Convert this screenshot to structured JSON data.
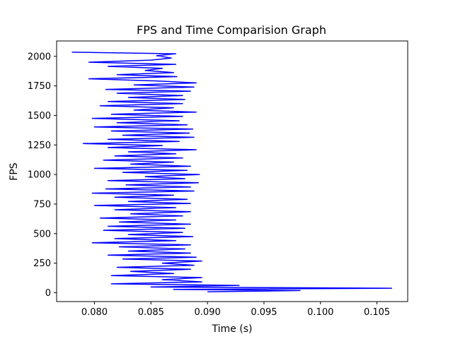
{
  "chart_data": {
    "type": "line",
    "title": "FPS and Time Comparision Graph",
    "xlabel": "Time (s)",
    "ylabel": "FPS",
    "xlim": [
      0.0766,
      0.0773
    ],
    "ylim": [
      -75,
      2130
    ],
    "xticks": [
      0.08,
      0.085,
      0.09,
      0.095,
      0.1,
      0.105
    ],
    "xtick_labels": [
      "0.080",
      "0.085",
      "0.090",
      "0.095",
      "0.100",
      "0.105"
    ],
    "yticks": [
      0,
      250,
      500,
      750,
      1000,
      1250,
      1500,
      1750,
      2000
    ],
    "ytick_labels": [
      "0",
      "250",
      "500",
      "750",
      "1000",
      "1250",
      "1500",
      "1750",
      "2000"
    ],
    "grid": false,
    "series": [
      {
        "color": "#0000ff",
        "points": [
          [
            0.078,
            2035
          ],
          [
            0.0872,
            2022
          ],
          [
            0.0855,
            2005
          ],
          [
            0.0868,
            1985
          ],
          [
            0.085,
            1968
          ],
          [
            0.0795,
            1950
          ],
          [
            0.0872,
            1932
          ],
          [
            0.0812,
            1915
          ],
          [
            0.086,
            1898
          ],
          [
            0.0845,
            1880
          ],
          [
            0.087,
            1862
          ],
          [
            0.082,
            1845
          ],
          [
            0.0873,
            1828
          ],
          [
            0.0795,
            1810
          ],
          [
            0.0855,
            1792
          ],
          [
            0.089,
            1775
          ],
          [
            0.0835,
            1758
          ],
          [
            0.0888,
            1740
          ],
          [
            0.081,
            1720
          ],
          [
            0.0885,
            1705
          ],
          [
            0.082,
            1688
          ],
          [
            0.0878,
            1668
          ],
          [
            0.083,
            1652
          ],
          [
            0.088,
            1635
          ],
          [
            0.0812,
            1618
          ],
          [
            0.0878,
            1600
          ],
          [
            0.0805,
            1582
          ],
          [
            0.087,
            1565
          ],
          [
            0.0835,
            1545
          ],
          [
            0.089,
            1528
          ],
          [
            0.0815,
            1510
          ],
          [
            0.0878,
            1492
          ],
          [
            0.0798,
            1475
          ],
          [
            0.0875,
            1455
          ],
          [
            0.082,
            1438
          ],
          [
            0.0882,
            1420
          ],
          [
            0.08,
            1402
          ],
          [
            0.0887,
            1385
          ],
          [
            0.0815,
            1368
          ],
          [
            0.0884,
            1350
          ],
          [
            0.0825,
            1332
          ],
          [
            0.0888,
            1315
          ],
          [
            0.0812,
            1298
          ],
          [
            0.0875,
            1280
          ],
          [
            0.079,
            1262
          ],
          [
            0.086,
            1245
          ],
          [
            0.0812,
            1228
          ],
          [
            0.089,
            1210
          ],
          [
            0.083,
            1192
          ],
          [
            0.0872,
            1175
          ],
          [
            0.0818,
            1158
          ],
          [
            0.0878,
            1140
          ],
          [
            0.0808,
            1122
          ],
          [
            0.087,
            1105
          ],
          [
            0.0832,
            1088
          ],
          [
            0.0885,
            1070
          ],
          [
            0.08,
            1052
          ],
          [
            0.0882,
            1035
          ],
          [
            0.0825,
            1018
          ],
          [
            0.0893,
            1000
          ],
          [
            0.0845,
            982
          ],
          [
            0.088,
            965
          ],
          [
            0.0812,
            948
          ],
          [
            0.0892,
            930
          ],
          [
            0.0828,
            912
          ],
          [
            0.0885,
            895
          ],
          [
            0.081,
            878
          ],
          [
            0.0888,
            860
          ],
          [
            0.0798,
            842
          ],
          [
            0.087,
            825
          ],
          [
            0.0818,
            808
          ],
          [
            0.0882,
            790
          ],
          [
            0.083,
            772
          ],
          [
            0.0885,
            755
          ],
          [
            0.08,
            738
          ],
          [
            0.0872,
            720
          ],
          [
            0.0818,
            702
          ],
          [
            0.0885,
            685
          ],
          [
            0.0832,
            668
          ],
          [
            0.0878,
            650
          ],
          [
            0.0805,
            632
          ],
          [
            0.0872,
            615
          ],
          [
            0.0822,
            598
          ],
          [
            0.0885,
            580
          ],
          [
            0.0812,
            562
          ],
          [
            0.088,
            545
          ],
          [
            0.0808,
            528
          ],
          [
            0.0878,
            510
          ],
          [
            0.083,
            492
          ],
          [
            0.0887,
            475
          ],
          [
            0.0818,
            458
          ],
          [
            0.0872,
            440
          ],
          [
            0.0798,
            422
          ],
          [
            0.0885,
            405
          ],
          [
            0.0822,
            388
          ],
          [
            0.088,
            370
          ],
          [
            0.083,
            352
          ],
          [
            0.0885,
            335
          ],
          [
            0.0812,
            318
          ],
          [
            0.089,
            300
          ],
          [
            0.0825,
            285
          ],
          [
            0.0895,
            268
          ],
          [
            0.086,
            250
          ],
          [
            0.0888,
            232
          ],
          [
            0.082,
            215
          ],
          [
            0.0885,
            198
          ],
          [
            0.0832,
            180
          ],
          [
            0.087,
            162
          ],
          [
            0.0815,
            145
          ],
          [
            0.0895,
            128
          ],
          [
            0.086,
            110
          ],
          [
            0.0895,
            92
          ],
          [
            0.0815,
            75
          ],
          [
            0.0928,
            62
          ],
          [
            0.085,
            48
          ],
          [
            0.1063,
            38
          ],
          [
            0.087,
            28
          ],
          [
            0.0982,
            18
          ],
          [
            0.09,
            8
          ]
        ]
      }
    ]
  }
}
